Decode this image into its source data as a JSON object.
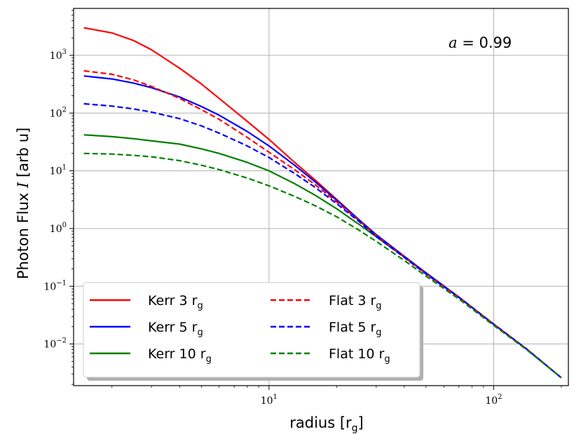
{
  "chart_data": {
    "type": "line",
    "xscale": "log",
    "yscale": "log",
    "xlim": [
      1.35,
      215
    ],
    "ylim": [
      0.0019,
      6500
    ],
    "grid": true,
    "xlabel_main": "radius [r",
    "xlabel_sub": "g",
    "xlabel_close": "]",
    "ylabel_main": "Photon Flux ",
    "ylabel_italic": "I",
    "ylabel_tail": " [arb u]",
    "annotation_italic": "a",
    "annotation_rest": " = 0.99",
    "x_ticks": [
      {
        "value": 10,
        "base": "10",
        "exp": "1"
      },
      {
        "value": 100,
        "base": "10",
        "exp": "2"
      }
    ],
    "y_ticks": [
      {
        "value": 0.01,
        "base": "10",
        "exp": "−2"
      },
      {
        "value": 0.1,
        "base": "10",
        "exp": "−1"
      },
      {
        "value": 1,
        "base": "10",
        "exp": "0"
      },
      {
        "value": 10,
        "base": "10",
        "exp": "1"
      },
      {
        "value": 100,
        "base": "10",
        "exp": "2"
      },
      {
        "value": 1000,
        "base": "10",
        "exp": "3"
      }
    ],
    "legend_position": "lower-left",
    "series": [
      {
        "name": "Kerr 3 r",
        "name_sub": "g",
        "color": "#ff0000",
        "dash": "solid",
        "points": [
          [
            1.5,
            3000
          ],
          [
            2,
            2450
          ],
          [
            2.5,
            1800
          ],
          [
            3,
            1250
          ],
          [
            4,
            600
          ],
          [
            5,
            320
          ],
          [
            6,
            180
          ],
          [
            8,
            72
          ],
          [
            10,
            35
          ],
          [
            13,
            14
          ],
          [
            16,
            7
          ],
          [
            20,
            3.2
          ],
          [
            25,
            1.45
          ],
          [
            30,
            0.78
          ],
          [
            40,
            0.33
          ],
          [
            50,
            0.17
          ],
          [
            70,
            0.065
          ],
          [
            100,
            0.022
          ],
          [
            140,
            0.0082
          ],
          [
            200,
            0.0026
          ]
        ]
      },
      {
        "name": "Kerr 5 r",
        "name_sub": "g",
        "color": "#0000ff",
        "dash": "solid",
        "points": [
          [
            1.5,
            440
          ],
          [
            2,
            390
          ],
          [
            2.5,
            330
          ],
          [
            3,
            275
          ],
          [
            4,
            190
          ],
          [
            5,
            130
          ],
          [
            6,
            92
          ],
          [
            8,
            48
          ],
          [
            10,
            27
          ],
          [
            13,
            12.5
          ],
          [
            16,
            6.5
          ],
          [
            20,
            3.1
          ],
          [
            25,
            1.45
          ],
          [
            30,
            0.78
          ],
          [
            40,
            0.33
          ],
          [
            50,
            0.17
          ],
          [
            70,
            0.065
          ],
          [
            100,
            0.022
          ],
          [
            140,
            0.0082
          ],
          [
            200,
            0.0026
          ]
        ]
      },
      {
        "name": "Kerr 10 r",
        "name_sub": "g",
        "color": "#008000",
        "dash": "solid",
        "points": [
          [
            1.5,
            42
          ],
          [
            2,
            39
          ],
          [
            2.5,
            36
          ],
          [
            3,
            33
          ],
          [
            4,
            29
          ],
          [
            5,
            24
          ],
          [
            6,
            20
          ],
          [
            8,
            14
          ],
          [
            10,
            10
          ],
          [
            13,
            6
          ],
          [
            16,
            3.8
          ],
          [
            20,
            2.2
          ],
          [
            25,
            1.2
          ],
          [
            30,
            0.72
          ],
          [
            40,
            0.32
          ],
          [
            50,
            0.165
          ],
          [
            70,
            0.064
          ],
          [
            100,
            0.022
          ],
          [
            140,
            0.0082
          ],
          [
            200,
            0.0026
          ]
        ]
      },
      {
        "name": "Flat 3 r",
        "name_sub": "g",
        "color": "#ff0000",
        "dash": "dashed",
        "points": [
          [
            1.5,
            540
          ],
          [
            2,
            470
          ],
          [
            2.5,
            375
          ],
          [
            3,
            290
          ],
          [
            4,
            180
          ],
          [
            5,
            115
          ],
          [
            6,
            78
          ],
          [
            8,
            38
          ],
          [
            10,
            21
          ],
          [
            13,
            10.5
          ],
          [
            16,
            5.8
          ],
          [
            20,
            2.9
          ],
          [
            25,
            1.4
          ],
          [
            30,
            0.75
          ],
          [
            40,
            0.32
          ],
          [
            50,
            0.165
          ],
          [
            70,
            0.064
          ],
          [
            100,
            0.022
          ],
          [
            140,
            0.0082
          ],
          [
            200,
            0.0026
          ]
        ]
      },
      {
        "name": "Flat 5 r",
        "name_sub": "g",
        "color": "#0000ff",
        "dash": "dashed",
        "points": [
          [
            1.5,
            145
          ],
          [
            2,
            132
          ],
          [
            2.5,
            118
          ],
          [
            3,
            104
          ],
          [
            4,
            80
          ],
          [
            5,
            60
          ],
          [
            6,
            45
          ],
          [
            8,
            27
          ],
          [
            10,
            17
          ],
          [
            13,
            9
          ],
          [
            16,
            5.2
          ],
          [
            20,
            2.7
          ],
          [
            25,
            1.35
          ],
          [
            30,
            0.73
          ],
          [
            40,
            0.315
          ],
          [
            50,
            0.163
          ],
          [
            70,
            0.064
          ],
          [
            100,
            0.022
          ],
          [
            140,
            0.0082
          ],
          [
            200,
            0.0026
          ]
        ]
      },
      {
        "name": "Flat 10 r",
        "name_sub": "g",
        "color": "#008000",
        "dash": "dashed",
        "points": [
          [
            1.5,
            20
          ],
          [
            2,
            19.5
          ],
          [
            2.5,
            18.5
          ],
          [
            3,
            17.5
          ],
          [
            4,
            15
          ],
          [
            5,
            12.5
          ],
          [
            6,
            10.5
          ],
          [
            8,
            7.5
          ],
          [
            10,
            5.5
          ],
          [
            13,
            3.6
          ],
          [
            16,
            2.5
          ],
          [
            20,
            1.6
          ],
          [
            25,
            0.95
          ],
          [
            30,
            0.6
          ],
          [
            40,
            0.28
          ],
          [
            50,
            0.15
          ],
          [
            70,
            0.06
          ],
          [
            100,
            0.021
          ],
          [
            140,
            0.008
          ],
          [
            200,
            0.0026
          ]
        ]
      }
    ]
  }
}
